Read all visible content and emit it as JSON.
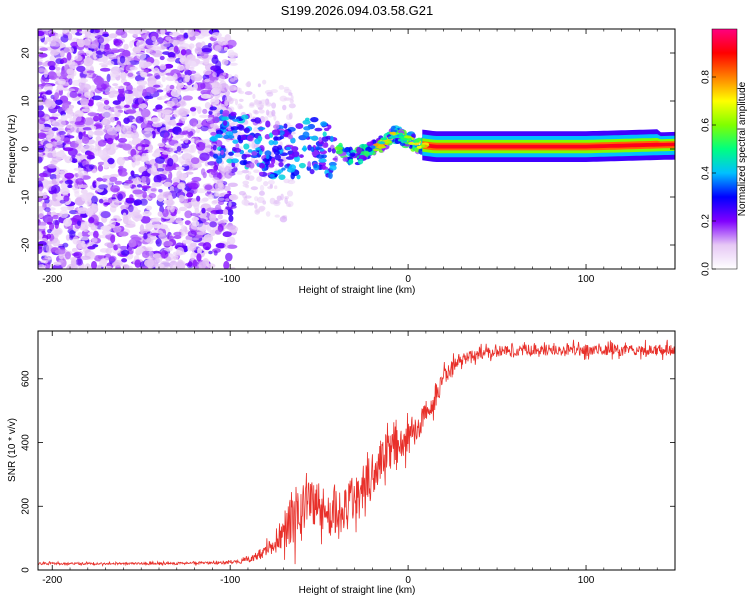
{
  "title": "S199.2026.094.03.58.G21",
  "colors": {
    "snr_line": "#e8302a",
    "axis": "#000000",
    "background": "#ffffff"
  },
  "chart_data": [
    {
      "type": "heatmap",
      "title": "S199.2026.094.03.58.G21",
      "xlabel": "Height of straight line (km)",
      "ylabel": "Frequency (Hz)",
      "xlim": [
        -208,
        150
      ],
      "ylim": [
        -25,
        25
      ],
      "x_ticks": [
        -200,
        -100,
        0,
        100
      ],
      "y_ticks": [
        -20,
        -10,
        0,
        10,
        20
      ],
      "ridge": {
        "description_points_height_km": [
          -110,
          -95,
          -80,
          -65,
          -55,
          -45,
          -35,
          -30,
          -22,
          -15,
          -8,
          0,
          5,
          15,
          50,
          100,
          150
        ],
        "frequency_hz": [
          3,
          2,
          0,
          -1,
          1,
          0,
          -1,
          -2,
          0,
          1,
          3,
          2,
          1,
          0.5,
          0.5,
          0.5,
          1
        ]
      },
      "colorbar": {
        "label": "Normalized spectral amplitude",
        "range": [
          0.0,
          1.0
        ],
        "ticks": [
          0.0,
          0.2,
          0.4,
          0.6,
          0.8
        ],
        "tick_labels": [
          "0.0",
          "0.2",
          "0.4",
          "0.6",
          "0.8"
        ],
        "colormap": [
          "#ffffff",
          "#e6c8f5",
          "#8000ff",
          "#0000ff",
          "#00c0ff",
          "#00ff80",
          "#80ff00",
          "#ffff00",
          "#ff8000",
          "#ff0000",
          "#ff0080"
        ]
      }
    },
    {
      "type": "line",
      "xlabel": "Height of straight line (km)",
      "ylabel": "SNR (10 * v/v)",
      "xlim": [
        -208,
        150
      ],
      "ylim": [
        0,
        750
      ],
      "x_ticks": [
        -200,
        -100,
        0,
        100
      ],
      "y_ticks": [
        0,
        200,
        400,
        600
      ],
      "series": [
        {
          "name": "SNR",
          "trend_x": [
            -208,
            -150,
            -110,
            -95,
            -85,
            -75,
            -65,
            -55,
            -45,
            -38,
            -30,
            -22,
            -15,
            -8,
            0,
            8,
            15,
            20,
            25,
            30,
            40,
            60,
            100,
            150
          ],
          "trend_y": [
            20,
            20,
            22,
            25,
            40,
            80,
            170,
            220,
            180,
            170,
            230,
            270,
            360,
            380,
            410,
            470,
            540,
            600,
            640,
            660,
            680,
            690,
            690,
            690
          ],
          "noise_amplitude": [
            5,
            5,
            6,
            8,
            15,
            40,
            130,
            120,
            100,
            110,
            110,
            120,
            90,
            80,
            70,
            60,
            50,
            40,
            30,
            25,
            25,
            25,
            25,
            25
          ]
        }
      ]
    }
  ]
}
